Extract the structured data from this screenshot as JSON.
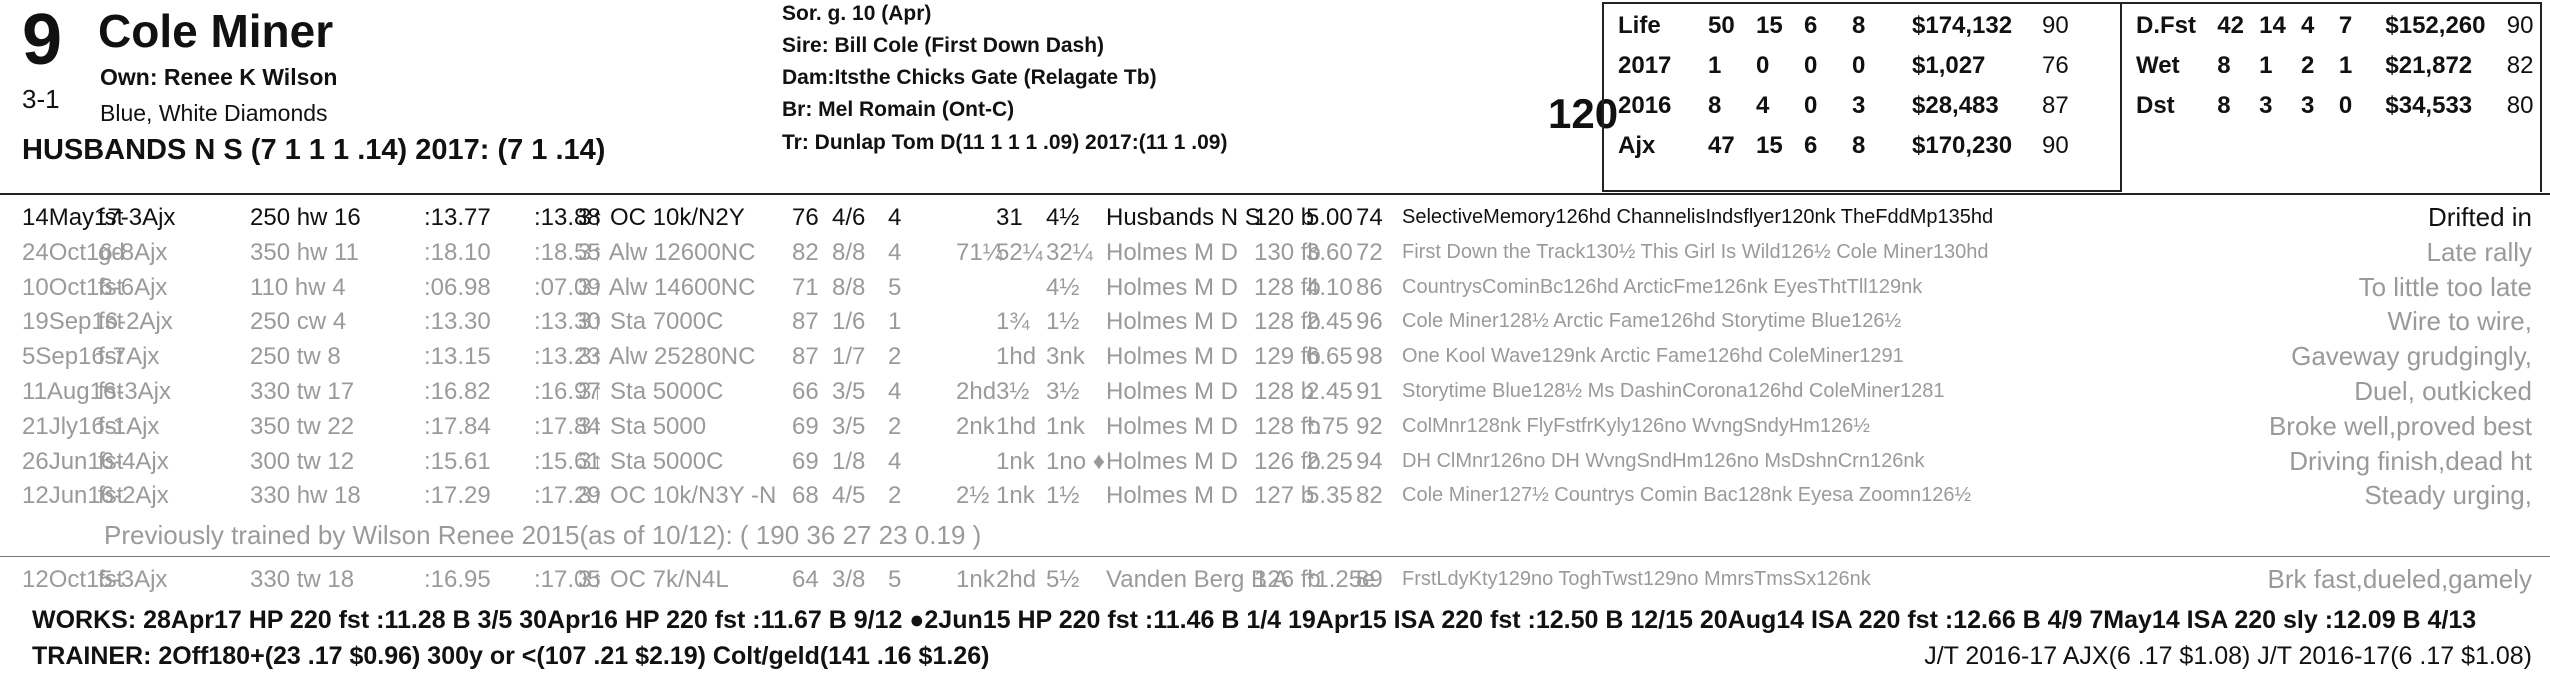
{
  "horse": {
    "program_number": "9",
    "name": "Cole Miner",
    "odds": "3-1",
    "owner": "Own: Renee K Wilson",
    "silks": "Blue, White Diamonds",
    "breeder_line": "HUSBANDS N S (7 1 1 1 .14) 2017: (7 1 .14)",
    "sex_age": "Sor. g. 10 (Apr)",
    "sire": "Sire: Bill Cole (First Down Dash)",
    "dam": "Dam:Itsthe Chicks Gate (Relagate Tb)",
    "br": "Br:   Mel Romain (Ont-C)",
    "tr": "Tr:   Dunlap Tom D(11 1 1 1 .09)  2017:(11 1 .09)",
    "weight": "120"
  },
  "stats_left": [
    {
      "label": "Life",
      "s": "50",
      "w": "15",
      "p": "6",
      "sh": "8",
      "earn": "$174,132",
      "fig": "90"
    },
    {
      "label": "2017",
      "s": "1",
      "w": "0",
      "p": "0",
      "sh": "0",
      "earn": "$1,027",
      "fig": "76"
    },
    {
      "label": "2016",
      "s": "8",
      "w": "4",
      "p": "0",
      "sh": "3",
      "earn": "$28,483",
      "fig": "87"
    },
    {
      "label": "Ajx",
      "s": "47",
      "w": "15",
      "p": "6",
      "sh": "8",
      "earn": "$170,230",
      "fig": "90"
    }
  ],
  "stats_right": [
    {
      "label": "D.Fst",
      "s": "42",
      "w": "14",
      "p": "4",
      "sh": "7",
      "earn": "$152,260",
      "fig": "90"
    },
    {
      "label": "Wet",
      "s": "8",
      "w": "1",
      "p": "2",
      "sh": "1",
      "earn": "$21,872",
      "fig": "82"
    },
    {
      "label": "Dst",
      "s": "8",
      "w": "3",
      "p": "3",
      "sh": "0",
      "earn": "$34,533",
      "fig": "80"
    }
  ],
  "races": [
    {
      "date": "14May17-3Ajx",
      "trk": "fst",
      "dist": "250 hw 16",
      "t1": ":13.77",
      "t2": ":13.88",
      "cls": "3↑ OC 10k/N2Y",
      "fig": "76",
      "pp": "4/6",
      "st": "4",
      "c1": "",
      "c2": "31",
      "fin": "4½",
      "jockey": "Husbands N S",
      "wt": "120 b",
      "odds": "5.00",
      "sr": "74",
      "comp": "SelectiveMemory126hd ChannelisIndsflyer120nk TheFddMp135hd",
      "comment": "Drifted in",
      "gray": false
    },
    {
      "date": "24Oct16-8Ajx",
      "trk": "gd",
      "dist": "350 hw 11",
      "t1": ":18.10",
      "t2": ":18.55",
      "cls": "3↑ Alw 12600NC",
      "fig": "82",
      "pp": "8/8",
      "st": "4",
      "c1": "71¼",
      "c2": "52¼",
      "fin": "32¼",
      "jockey": "Holmes M D",
      "wt": "130 fb",
      "odds": "3.60",
      "sr": "72",
      "comp": "First Down the Track130½ This Girl Is Wild126½ Cole Miner130hd",
      "comment": "Late rally",
      "gray": true
    },
    {
      "date": "10Oct16-6Ajx",
      "trk": "fst",
      "dist": "110 hw 4",
      "t1": ":06.98",
      "t2": ":07.09",
      "cls": "3↑ Alw 14600NC",
      "fig": "71",
      "pp": "8/8",
      "st": "5",
      "c1": "",
      "c2": "",
      "fin": "4½",
      "jockey": "Holmes M D",
      "wt": "128 fb",
      "odds": "4.10",
      "sr": "86",
      "comp": "CountrysCominBc126hd ArcticFme126nk EyesThtTll129nk",
      "comment": "To little too late",
      "gray": true
    },
    {
      "date": "19Sep16-2Ajx",
      "trk": "fst",
      "dist": "250 cw 4",
      "t1": ":13.30",
      "t2": ":13.30",
      "cls": "3↑ Sta 7000C",
      "fig": "87",
      "pp": "1/6",
      "st": "1",
      "c1": "",
      "c2": "1¾",
      "fin": "1½",
      "jockey": "Holmes M D",
      "wt": "128 fb",
      "odds": "2.45",
      "sr": "96",
      "comp": "Cole Miner128½ Arctic Fame126hd Storytime Blue126½",
      "comment": "Wire to wire,",
      "gray": true
    },
    {
      "date": "5Sep16-7Ajx",
      "trk": "fst",
      "dist": "250 tw 8",
      "t1": ":13.15",
      "t2": ":13.23",
      "cls": "3↑ Alw 25280NC",
      "fig": "87",
      "pp": "1/7",
      "st": "2",
      "c1": "",
      "c2": "1hd",
      "fin": "3nk",
      "jockey": "Holmes M D",
      "wt": "129 fb",
      "odds": "6.65",
      "sr": "98",
      "comp": "One Kool Wave129nk Arctic Fame126hd ColeMiner1291",
      "comment": "Gaveway grudgingly,",
      "gray": true
    },
    {
      "date": "11Aug16-3Ajx",
      "trk": "fst",
      "dist": "330 tw 17",
      "t1": ":16.82",
      "t2": ":16.97",
      "cls": "3↑ Sta 5000C",
      "fig": "66",
      "pp": "3/5",
      "st": "4",
      "c1": "2hd",
      "c2": "3½",
      "fin": "3½",
      "jockey": "Holmes M D",
      "wt": "128 b",
      "odds": "2.45",
      "sr": "91",
      "comp": "Storytime Blue128½ Ms DashinCorona126hd ColeMiner1281",
      "comment": "Duel, outkicked",
      "gray": true
    },
    {
      "date": "21Jly16-1Ajx",
      "trk": "fst",
      "dist": "350 tw 22",
      "t1": ":17.84",
      "t2": ":17.84",
      "cls": "3↑ Sta 5000",
      "fig": "69",
      "pp": "3/5",
      "st": "2",
      "c1": "2nk",
      "c2": "1hd",
      "fin": "1nk",
      "jockey": "Holmes M D",
      "wt": "128 fb",
      "odds": "*.75",
      "sr": "92",
      "comp": "ColMnr128nk FlyFstfrKyly126no WvngSndyHm126½",
      "comment": "Broke well,proved best",
      "gray": true
    },
    {
      "date": "26Jun16-4Ajx",
      "trk": "fst",
      "dist": "300 tw 12",
      "t1": ":15.61",
      "t2": ":15.61",
      "cls": "3↑ Sta 5000C",
      "fig": "69",
      "pp": "1/8",
      "st": "4",
      "c1": "",
      "c2": "1nk",
      "fin": "1no ♦",
      "jockey": "Holmes M D",
      "wt": "126 fb",
      "odds": "2.25",
      "sr": "94",
      "comp": "DH ClMnr126no DH WvngSndHm126no MsDshnCrn126nk",
      "comment": "Driving finish,dead ht",
      "gray": true
    },
    {
      "date": "12Jun16-2Ajx",
      "trk": "fst",
      "dist": "330 hw 18",
      "t1": ":17.29",
      "t2": ":17.29",
      "cls": "3↑ OC 10k/N3Y -N",
      "fig": "68",
      "pp": "4/5",
      "st": "2",
      "c1": "2½",
      "c2": "1nk",
      "fin": "1½",
      "jockey": "Holmes M D",
      "wt": "127 b",
      "odds": "5.35",
      "sr": "82",
      "comp": "Cole Miner127½ Countrys Comin Bac128nk Eyesa Zoomn126½",
      "comment": "Steady urging,",
      "gray": true
    }
  ],
  "trained_note": "Previously trained by Wilson Renee 2015(as of 10/12): ( 190 36 27 23 0.19 )",
  "last_race": {
    "date": "12Oct15-3Ajx",
    "trk": "fst",
    "dist": "330 tw 18",
    "t1": ":16.95",
    "t2": ":17.05",
    "cls": "3↑ OC 7k/N4L",
    "fig": "64",
    "pp": "3/8",
    "st": "5",
    "c1": "1nk",
    "c2": "2hd",
    "fin": "5½",
    "jockey": "Vanden Berg B A",
    "wt": "126 fb",
    "odds": "*1.25e",
    "sr": "89",
    "comp": "FrstLdyKty129no ToghTwst129no MmrsTmsSx126nk",
    "comment": "Brk fast,dueled,gamely",
    "gray": true
  },
  "works": "WORKS:   28Apr17 HP  220 fst  :11.28 B 3/5   30Apr16 HP  220 fst  :11.67 B 9/12   ●2Jun15 HP  220 fst  :11.46 B 1/4   19Apr15 ISA 220 fst  :12.50 B 12/15   20Aug14 ISA 220 fst  :12.66 B 4/9   7May14 ISA 220 sly  :12.09 B 4/13",
  "trainer": "TRAINER: 2Off180+(23 .17 $0.96) 300y or <(107 .21 $2.19) Colt/geld(141 .16 $1.26)",
  "jt": "J/T 2016-17 AJX(6 .17 $1.08)  J/T 2016-17(6 .17 $1.08)"
}
